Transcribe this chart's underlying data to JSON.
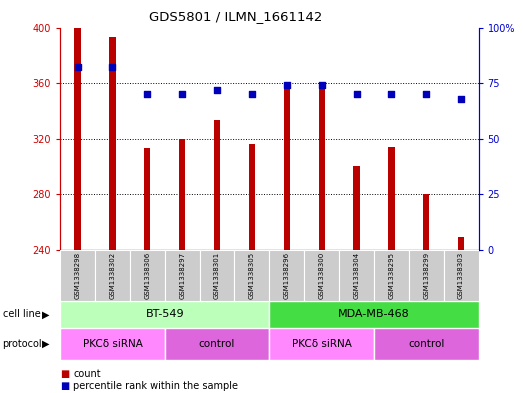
{
  "title": "GDS5801 / ILMN_1661142",
  "samples": [
    "GSM1338298",
    "GSM1338302",
    "GSM1338306",
    "GSM1338297",
    "GSM1338301",
    "GSM1338305",
    "GSM1338296",
    "GSM1338300",
    "GSM1338304",
    "GSM1338295",
    "GSM1338299",
    "GSM1338303"
  ],
  "counts": [
    400,
    393,
    313,
    320,
    333,
    316,
    361,
    358,
    300,
    314,
    280,
    249
  ],
  "percentiles": [
    82,
    82,
    70,
    70,
    72,
    70,
    74,
    74,
    70,
    70,
    70,
    68
  ],
  "ylim_left": [
    240,
    400
  ],
  "ylim_right": [
    0,
    100
  ],
  "yticks_left": [
    240,
    280,
    320,
    360,
    400
  ],
  "yticks_right": [
    0,
    25,
    50,
    75,
    100
  ],
  "bar_color": "#bb0000",
  "dot_color": "#0000bb",
  "cell_line_groups": [
    {
      "label": "BT-549",
      "start": 0,
      "end": 6,
      "color": "#bbffbb"
    },
    {
      "label": "MDA-MB-468",
      "start": 6,
      "end": 12,
      "color": "#44dd44"
    }
  ],
  "protocol_groups": [
    {
      "label": "PKCδ siRNA",
      "start": 0,
      "end": 3,
      "color": "#ff88ff"
    },
    {
      "label": "control",
      "start": 3,
      "end": 6,
      "color": "#dd66dd"
    },
    {
      "label": "PKCδ siRNA",
      "start": 6,
      "end": 9,
      "color": "#ff88ff"
    },
    {
      "label": "control",
      "start": 9,
      "end": 12,
      "color": "#dd66dd"
    }
  ],
  "left_axis_color": "#cc0000",
  "right_axis_color": "#0000cc",
  "sample_bg_color": "#cccccc"
}
